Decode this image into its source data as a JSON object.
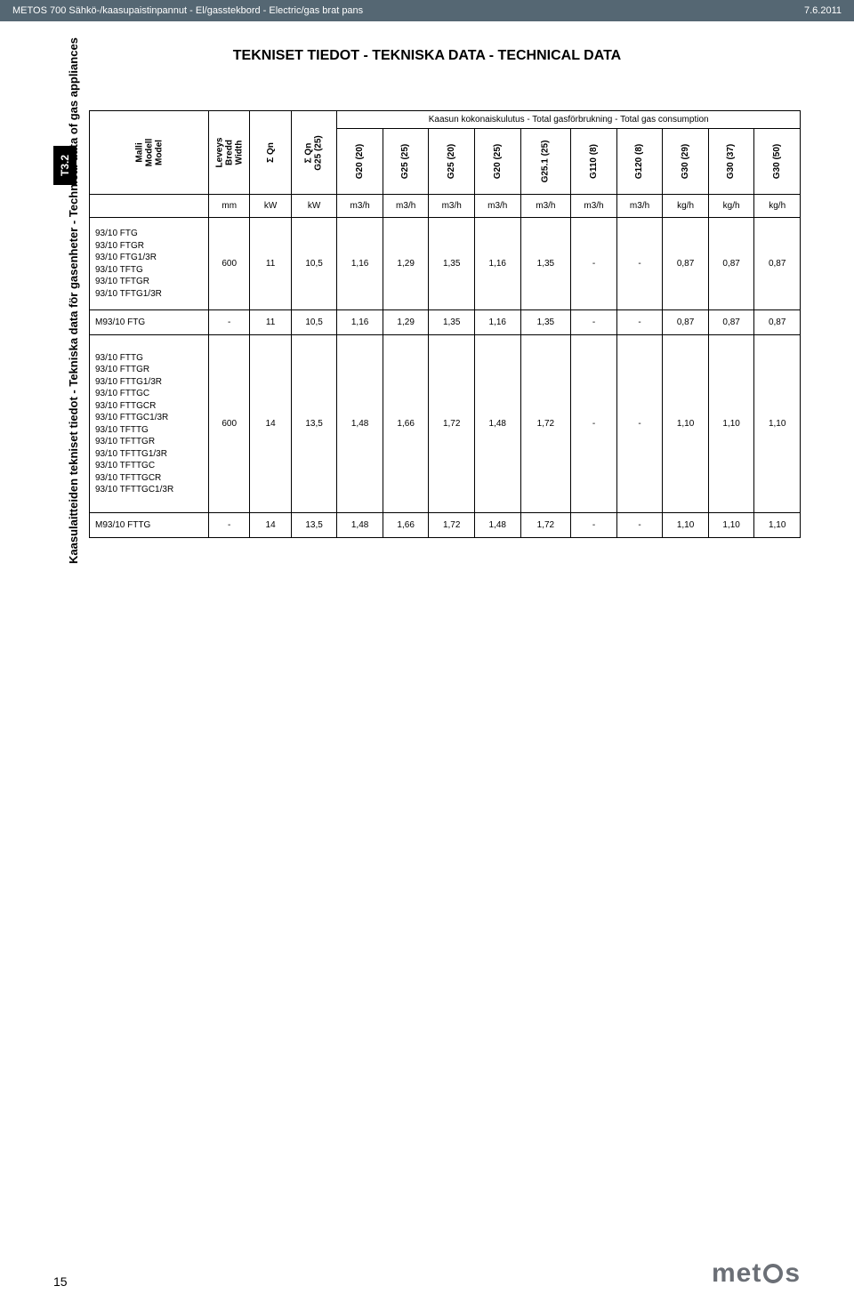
{
  "header": {
    "left": "METOS 700 Sähkö-/kaasupaistinpannut - El/gasstekbord - Electric/gas brat pans",
    "right": "7.6.2011"
  },
  "main_title": "TEKNISET TIEDOT - TEKNISKA DATA - TECHNICAL DATA",
  "box_label": "T3.2",
  "vertical_heading": "Kaasulaitteiden tekniset tiedot - Tekniska data för gasenheter - Technical data of gas appliances",
  "gas_consumption_label": "Kaasun kokonaiskulutus - Total gasförbrukning - Total gas consumption",
  "col_headers": {
    "model": "Malli\nModell\nModel",
    "width": "Leveys\nBredd\nWidth",
    "qn": "Σ Qn",
    "qn_g25": "Σ Qn\nG25 (25)",
    "g20_20": "G20 (20)",
    "g25_25": "G25 (25)",
    "g25_20": "G25 (20)",
    "g20_25": "G20 (25)",
    "g251_25": "G25.1 (25)",
    "g110_8": "G110 (8)",
    "g120_8": "G120 (8)",
    "g30_29": "G30 (29)",
    "g30_37": "G30 (37)",
    "g30_50": "G30 (50)"
  },
  "units": {
    "width": "mm",
    "qn": "kW",
    "qn_g25": "kW",
    "g20_20": "m3/h",
    "g25_25": "m3/h",
    "g25_20": "m3/h",
    "g20_25": "m3/h",
    "g251_25": "m3/h",
    "g110_8": "m3/h",
    "g120_8": "m3/h",
    "g30_29": "kg/h",
    "g30_37": "kg/h",
    "g30_50": "kg/h"
  },
  "rows": [
    {
      "models": [
        "93/10 FTG",
        "93/10 FTGR",
        "93/10 FTG1/3R",
        "93/10 TFTG",
        "93/10 TFTGR",
        "93/10 TFTG1/3R"
      ],
      "values": [
        "600",
        "11",
        "10,5",
        "1,16",
        "1,29",
        "1,35",
        "1,16",
        "1,35",
        "-",
        "-",
        "0,87",
        "0,87",
        "0,87"
      ]
    },
    {
      "models": [
        "M93/10 FTG"
      ],
      "values": [
        "-",
        "11",
        "10,5",
        "1,16",
        "1,29",
        "1,35",
        "1,16",
        "1,35",
        "-",
        "-",
        "0,87",
        "0,87",
        "0,87"
      ]
    },
    {
      "models": [
        "93/10 FTTG",
        "93/10 FTTGR",
        "93/10 FTTG1/3R",
        "93/10 FTTGC",
        "93/10 FTTGCR",
        "93/10 FTTGC1/3R",
        "93/10 TFTTG",
        "93/10 TFTTGR",
        "93/10 TFTTG1/3R",
        "93/10 TFTTGC",
        "93/10 TFTTGCR",
        "93/10 TFTTGC1/3R"
      ],
      "values": [
        "600",
        "14",
        "13,5",
        "1,48",
        "1,66",
        "1,72",
        "1,48",
        "1,72",
        "-",
        "-",
        "1,10",
        "1,10",
        "1,10"
      ]
    },
    {
      "models": [
        "M93/10 FTTG"
      ],
      "values": [
        "-",
        "14",
        "13,5",
        "1,48",
        "1,66",
        "1,72",
        "1,48",
        "1,72",
        "-",
        "-",
        "1,10",
        "1,10",
        "1,10"
      ]
    }
  ],
  "page_number": "15",
  "logo_text": "met s",
  "colors": {
    "header_bg": "#556773",
    "text": "#000000",
    "logo": "#6b6f76"
  }
}
